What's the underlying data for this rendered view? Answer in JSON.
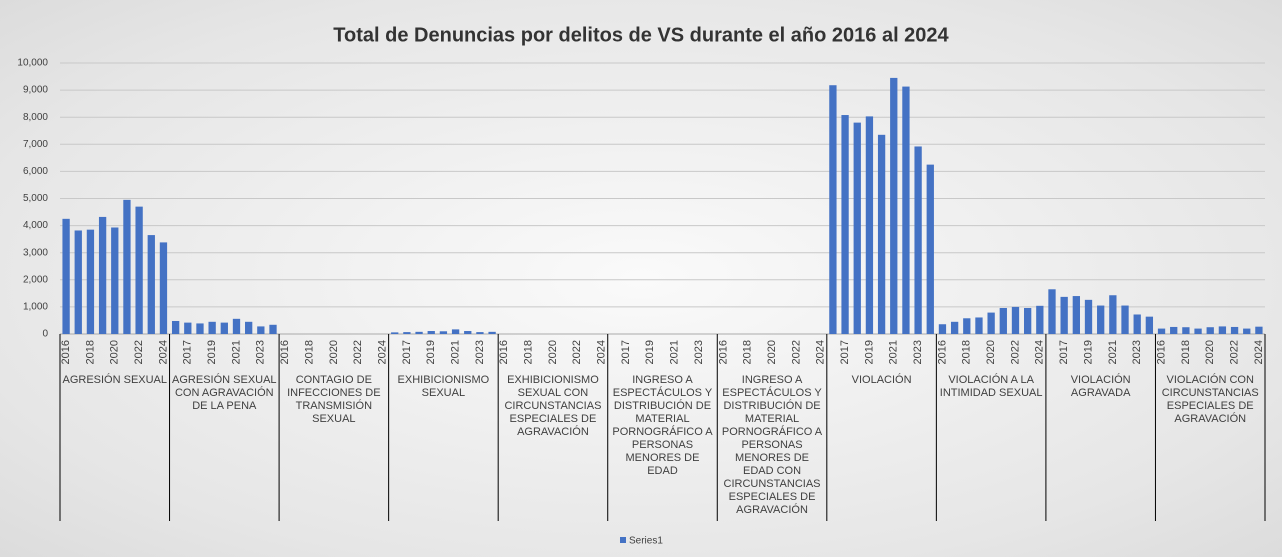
{
  "chart_data": {
    "type": "bar",
    "title": "Total de Denuncias por delitos de VS durante el año 2016 al 2024",
    "groups": [
      "AGRESIÓN SEXUAL",
      "AGRESIÓN SEXUAL CON AGRAVACIÓN DE LA PENA",
      "CONTAGIO DE INFECCIONES DE TRANSMISIÓN SEXUAL",
      "EXHIBICIONISMO SEXUAL",
      "EXHIBICIONISMO SEXUAL CON CIRCUNSTANCIAS ESPECIALES DE AGRAVACIÓN",
      "INGRESO A ESPECTÁCULOS Y DISTRIBUCIÓN DE MATERIAL PORNOGRÁFICO A PERSONAS MENORES DE EDAD",
      "INGRESO A ESPECTÁCULOS Y DISTRIBUCIÓN DE MATERIAL PORNOGRÁFICO A PERSONAS MENORES DE EDAD CON CIRCUNSTANCIAS ESPECIALES DE AGRAVACIÓN",
      "VIOLACIÓN",
      "VIOLACIÓN A LA INTIMIDAD SEXUAL",
      "VIOLACIÓN AGRAVADA",
      "VIOLACIÓN CON CIRCUNSTANCIAS ESPECIALES DE AGRAVACIÓN"
    ],
    "categories": [
      "2016",
      null,
      "2018",
      null,
      "2020",
      null,
      "2022",
      null,
      "2024",
      null,
      "2017",
      null,
      "2019",
      null,
      "2021",
      null,
      "2023",
      null,
      "2016",
      null,
      "2018",
      null,
      "2020",
      null,
      "2022",
      null,
      "2024",
      null,
      "2017",
      null,
      "2019",
      null,
      "2021",
      null,
      "2023",
      null,
      "2016",
      null,
      "2018",
      null,
      "2020",
      null,
      "2022",
      null,
      "2024",
      null,
      "2017",
      null,
      "2019",
      null,
      "2021",
      null,
      "2023",
      null,
      "2016",
      null,
      "2018",
      null,
      "2020",
      null,
      "2022",
      null,
      "2024",
      null,
      "2017",
      null,
      "2019",
      null,
      "2021",
      null,
      "2023",
      null,
      "2016",
      null,
      "2018",
      null,
      "2020",
      null,
      "2022",
      null,
      "2024",
      null,
      "2017",
      null,
      "2019",
      null,
      "2021",
      null,
      "2023",
      null,
      "2016",
      null,
      "2018",
      null,
      "2020",
      null,
      "2022",
      null,
      "2024"
    ],
    "series": [
      {
        "name": "Series1",
        "color": "#4472c4",
        "values": [
          4250,
          3820,
          3850,
          4320,
          3930,
          4950,
          4700,
          3650,
          3380,
          480,
          420,
          390,
          450,
          420,
          560,
          450,
          280,
          340,
          0,
          0,
          0,
          0,
          0,
          0,
          0,
          0,
          0,
          60,
          70,
          80,
          110,
          100,
          170,
          110,
          70,
          80,
          0,
          0,
          0,
          0,
          0,
          0,
          0,
          0,
          0,
          0,
          0,
          0,
          0,
          0,
          0,
          0,
          0,
          0,
          0,
          0,
          0,
          0,
          0,
          0,
          0,
          0,
          0,
          9180,
          8080,
          7800,
          8030,
          7350,
          9450,
          9130,
          6920,
          6250,
          360,
          450,
          580,
          610,
          790,
          960,
          1000,
          960,
          1040,
          1650,
          1370,
          1400,
          1260,
          1050,
          1430,
          1050,
          720,
          640,
          200,
          260,
          250,
          200,
          250,
          280,
          260,
          200,
          270
        ]
      }
    ],
    "ylim": [
      0,
      10000
    ],
    "yticks": [
      0,
      {
        "value": 1000,
        "label": "1,000"
      },
      {
        "value": 2000,
        "label": "2,000"
      },
      {
        "value": 3000,
        "label": "3,000"
      },
      {
        "value": 4000,
        "label": "4,000"
      },
      {
        "value": 5000,
        "label": "5,000"
      },
      {
        "value": 6000,
        "label": "6,000"
      },
      {
        "value": 7000,
        "label": "7,000"
      },
      {
        "value": 8000,
        "label": "8,000"
      },
      {
        "value": 9000,
        "label": "9,000"
      },
      {
        "value": 10000,
        "label": "10,000"
      }
    ],
    "grid": true,
    "legend": "bottom"
  }
}
